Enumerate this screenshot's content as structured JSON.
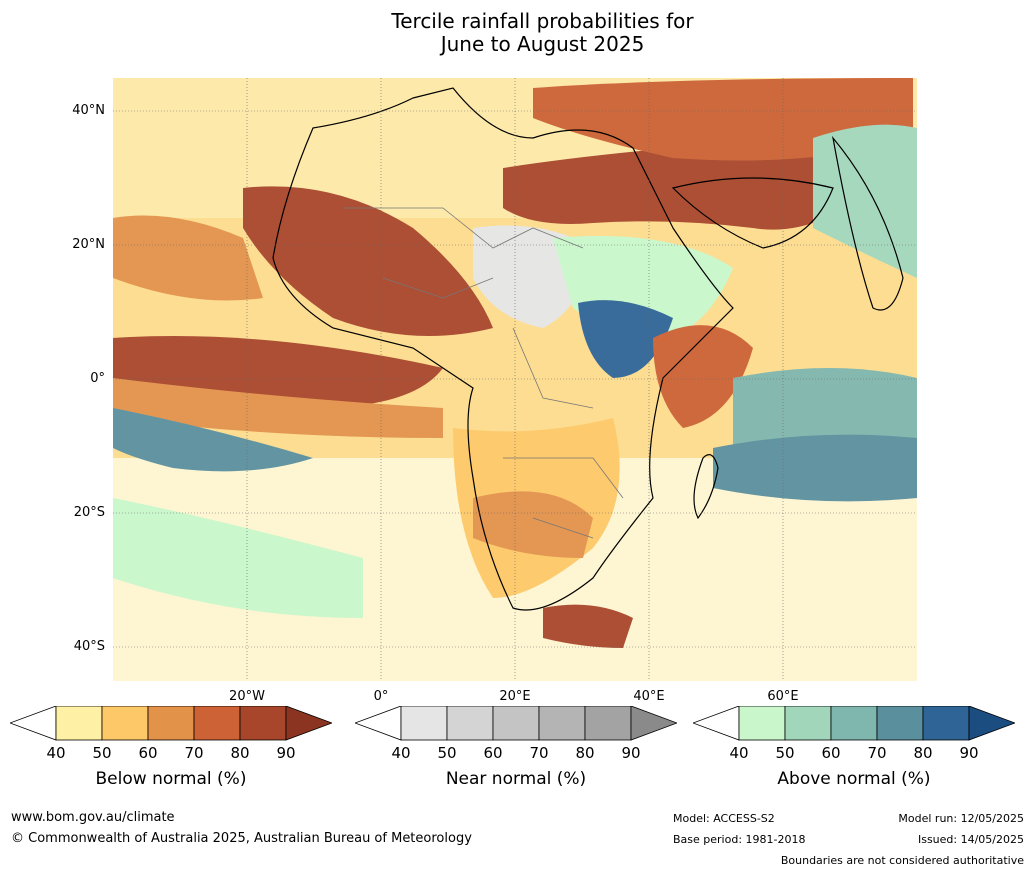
{
  "title": {
    "line1": "Tercile rainfall probabilities for",
    "line2": "June to August 2025"
  },
  "map": {
    "lat_labels": [
      "40°N",
      "20°N",
      "0°",
      "20°S",
      "40°S"
    ],
    "lon_labels": [
      "20°W",
      "0°",
      "20°E",
      "40°E",
      "60°E"
    ]
  },
  "colorbars": [
    {
      "title": "Below normal (%)",
      "ticks": [
        "40",
        "50",
        "60",
        "70",
        "80",
        "90"
      ],
      "colors": [
        "#fef0a4",
        "#fdc867",
        "#e3924a",
        "#cc6235",
        "#a8462b",
        "#8c3422"
      ]
    },
    {
      "title": "Near normal (%)",
      "ticks": [
        "40",
        "50",
        "60",
        "70",
        "80",
        "90"
      ],
      "colors": [
        "#e5e5e5",
        "#d4d4d4",
        "#c4c4c4",
        "#b4b4b4",
        "#a3a3a3",
        "#8a8a8a"
      ]
    },
    {
      "title": "Above normal (%)",
      "ticks": [
        "40",
        "50",
        "60",
        "70",
        "80",
        "90"
      ],
      "colors": [
        "#c9f7cb",
        "#a2d6bb",
        "#7fb6ad",
        "#5a8f9e",
        "#2f6596",
        "#1c4d80"
      ]
    }
  ],
  "footer": {
    "url": "www.bom.gov.au/climate",
    "copyright": "© Commonwealth of Australia 2025, Australian Bureau of Meteorology",
    "model": "Model: ACCESS-S2",
    "base_period": "Base period: 1981-2018",
    "model_run": "Model run: 12/05/2025",
    "issued": "Issued: 14/05/2025",
    "disclaimer": "Boundaries are not considered authoritative"
  }
}
